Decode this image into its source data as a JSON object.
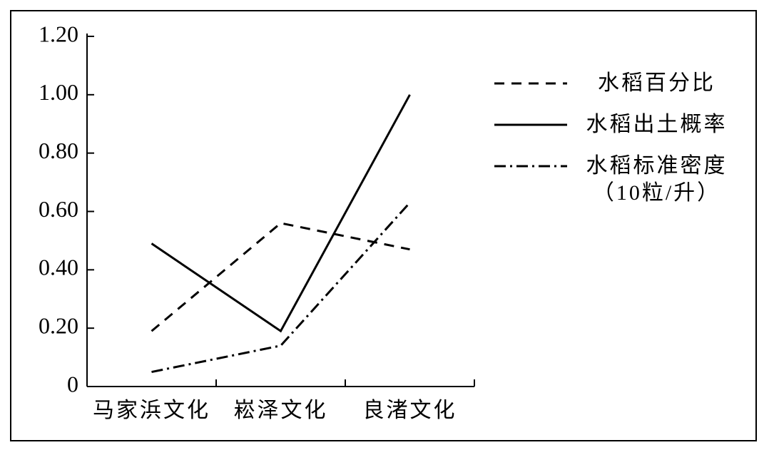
{
  "chart_data": {
    "type": "line",
    "categories": [
      "马家浜文化",
      "崧泽文化",
      "良渚文化"
    ],
    "series": [
      {
        "name": "水稻百分比",
        "color": "#000000",
        "style": "dashed",
        "values": [
          0.19,
          0.56,
          0.47
        ]
      },
      {
        "name": "水稻出土概率",
        "color": "#000000",
        "style": "solid",
        "values": [
          0.49,
          0.19,
          1.0
        ]
      },
      {
        "name": "水稻标准密度（10粒/升）",
        "color": "#000000",
        "style": "dashdot",
        "values": [
          0.05,
          0.14,
          0.63
        ]
      }
    ],
    "ylim": [
      0,
      1.2
    ],
    "yticks": [
      0,
      {
        "value": 0.2,
        "label": "0.20"
      },
      {
        "value": 0.4,
        "label": "0.40"
      },
      {
        "value": 0.6,
        "label": "0.60"
      },
      {
        "value": 0.8,
        "label": "0.80"
      },
      {
        "value": 1.0,
        "label": "1.00"
      },
      {
        "value": 1.2,
        "label": "1.20"
      }
    ],
    "legend": "right"
  }
}
